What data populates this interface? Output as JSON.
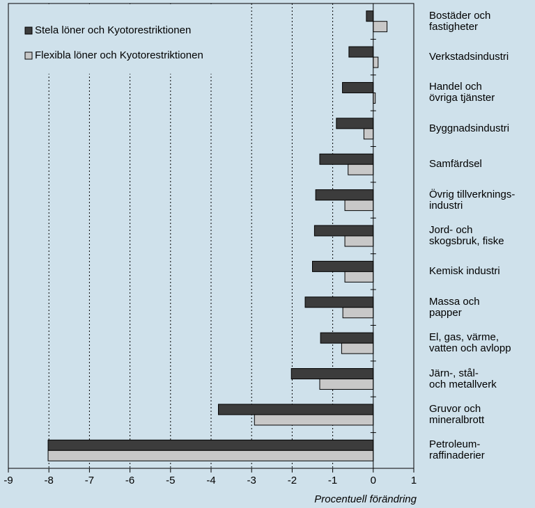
{
  "chart_data": {
    "type": "hbar",
    "x_label": "Procentuell förändring",
    "categories": [
      "Bostäder och\nfastigheter",
      "Verkstadsindustri",
      "Handel och\növriga tjänster",
      "Byggnadsindustri",
      "Samfärdsel",
      "Övrig tillverknings-\nindustri",
      "Jord- och\nskogsbruk, fiske",
      "Kemisk industri",
      "Massa och\npapper",
      "El, gas, värme,\nvatten och avlopp",
      "Järn-, stål-\noch metallverk",
      "Gruvor och\nmineralbrott",
      "Petroleum-\nraffinaderier"
    ],
    "series": [
      {
        "name": "Stela löner och Kyotorestriktionen",
        "color": "#3c3c3c",
        "values": [
          -0.17,
          -0.6,
          -0.76,
          -0.91,
          -1.32,
          -1.42,
          -1.45,
          -1.5,
          -1.68,
          -1.3,
          -2.02,
          -3.82,
          -8.02
        ]
      },
      {
        "name": "Flexibla löner och Kyotorestriktionen",
        "color": "#c8c8c8",
        "values": [
          0.34,
          0.12,
          0.05,
          -0.23,
          -0.62,
          -0.7,
          -0.7,
          -0.7,
          -0.75,
          -0.78,
          -1.32,
          -2.93,
          -8.02
        ]
      }
    ],
    "xlim": [
      -9,
      1
    ],
    "xticks": [
      -9,
      -8,
      -7,
      -6,
      -5,
      -4,
      -3,
      -2,
      -1,
      0,
      1
    ],
    "grid": true
  }
}
